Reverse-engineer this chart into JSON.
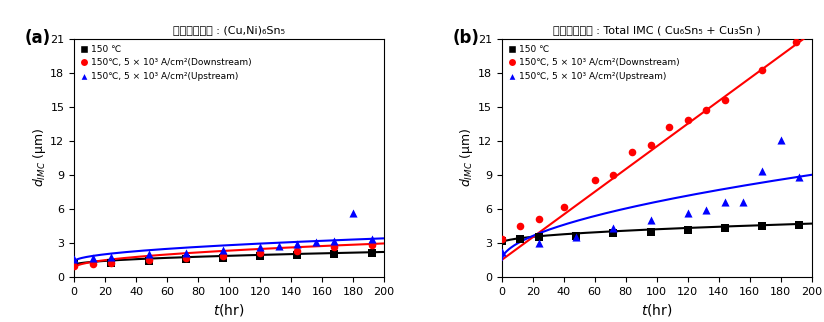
{
  "panel_a_title": "금속간화합물 : (Cu,Ni)₆Sn₅",
  "panel_b_title": "금속간화합물 : Total IMC ( Cu₆Sn₅ + Cu₃Sn )",
  "ylabel": "$d_{IMC}$ (μm)",
  "xlabel": "$t$(hr)",
  "ylim": [
    0,
    21
  ],
  "xlim": [
    0,
    200
  ],
  "yticks": [
    0,
    3,
    6,
    9,
    12,
    15,
    18,
    21
  ],
  "xticks": [
    0,
    20,
    40,
    60,
    80,
    100,
    120,
    140,
    160,
    180,
    200
  ],
  "legend_labels": [
    "150 ℃",
    "150℃, 5 × 10³ A/cm²(Downstream)",
    "150℃, 5 × 10³ A/cm²(Upstream)"
  ],
  "colors": [
    "black",
    "red",
    "blue"
  ],
  "panel_a": {
    "black_x": [
      0,
      24,
      48,
      72,
      96,
      120,
      144,
      168,
      192
    ],
    "black_y": [
      1.15,
      1.25,
      1.4,
      1.55,
      1.65,
      1.8,
      1.95,
      2.05,
      2.15
    ],
    "red_x": [
      0,
      12,
      24,
      48,
      72,
      96,
      120,
      144,
      168,
      192
    ],
    "red_y": [
      1.0,
      1.1,
      1.25,
      1.45,
      1.65,
      1.85,
      2.1,
      2.3,
      2.65,
      2.85
    ],
    "blue_x": [
      0,
      12,
      24,
      48,
      72,
      96,
      120,
      132,
      144,
      156,
      168,
      180,
      192
    ],
    "blue_y": [
      1.55,
      1.65,
      1.75,
      2.0,
      2.15,
      2.35,
      2.65,
      2.75,
      2.9,
      3.05,
      3.15,
      5.6,
      3.3
    ],
    "fit_black": [
      1.05,
      1.15,
      0.5
    ],
    "fit_red": [
      0.8,
      2.15,
      0.5
    ],
    "fit_blue": [
      1.35,
      2.05,
      0.5
    ]
  },
  "panel_b": {
    "black_x": [
      0,
      12,
      24,
      48,
      72,
      96,
      120,
      144,
      168,
      192
    ],
    "black_y": [
      3.2,
      3.35,
      3.5,
      3.65,
      3.85,
      4.0,
      4.15,
      4.3,
      4.45,
      4.6
    ],
    "red_x": [
      0,
      12,
      24,
      40,
      60,
      72,
      84,
      96,
      108,
      120,
      132,
      144,
      168,
      190
    ],
    "red_y": [
      3.3,
      4.5,
      5.1,
      6.2,
      8.5,
      9.0,
      11.0,
      11.6,
      13.2,
      13.8,
      14.7,
      15.6,
      18.2,
      20.7
    ],
    "blue_x": [
      0,
      24,
      48,
      72,
      96,
      120,
      132,
      144,
      156,
      168,
      180,
      192
    ],
    "blue_y": [
      2.2,
      3.0,
      3.5,
      4.3,
      5.0,
      5.6,
      5.9,
      6.6,
      6.6,
      9.3,
      12.1,
      8.8
    ],
    "fit_black": [
      3.0,
      1.7,
      0.5
    ],
    "fit_red_a": 1.5,
    "fit_red_b": 10.0,
    "fit_blue_a": 1.5,
    "fit_blue_b": 7.5,
    "fit_blue_n": 0.55
  }
}
